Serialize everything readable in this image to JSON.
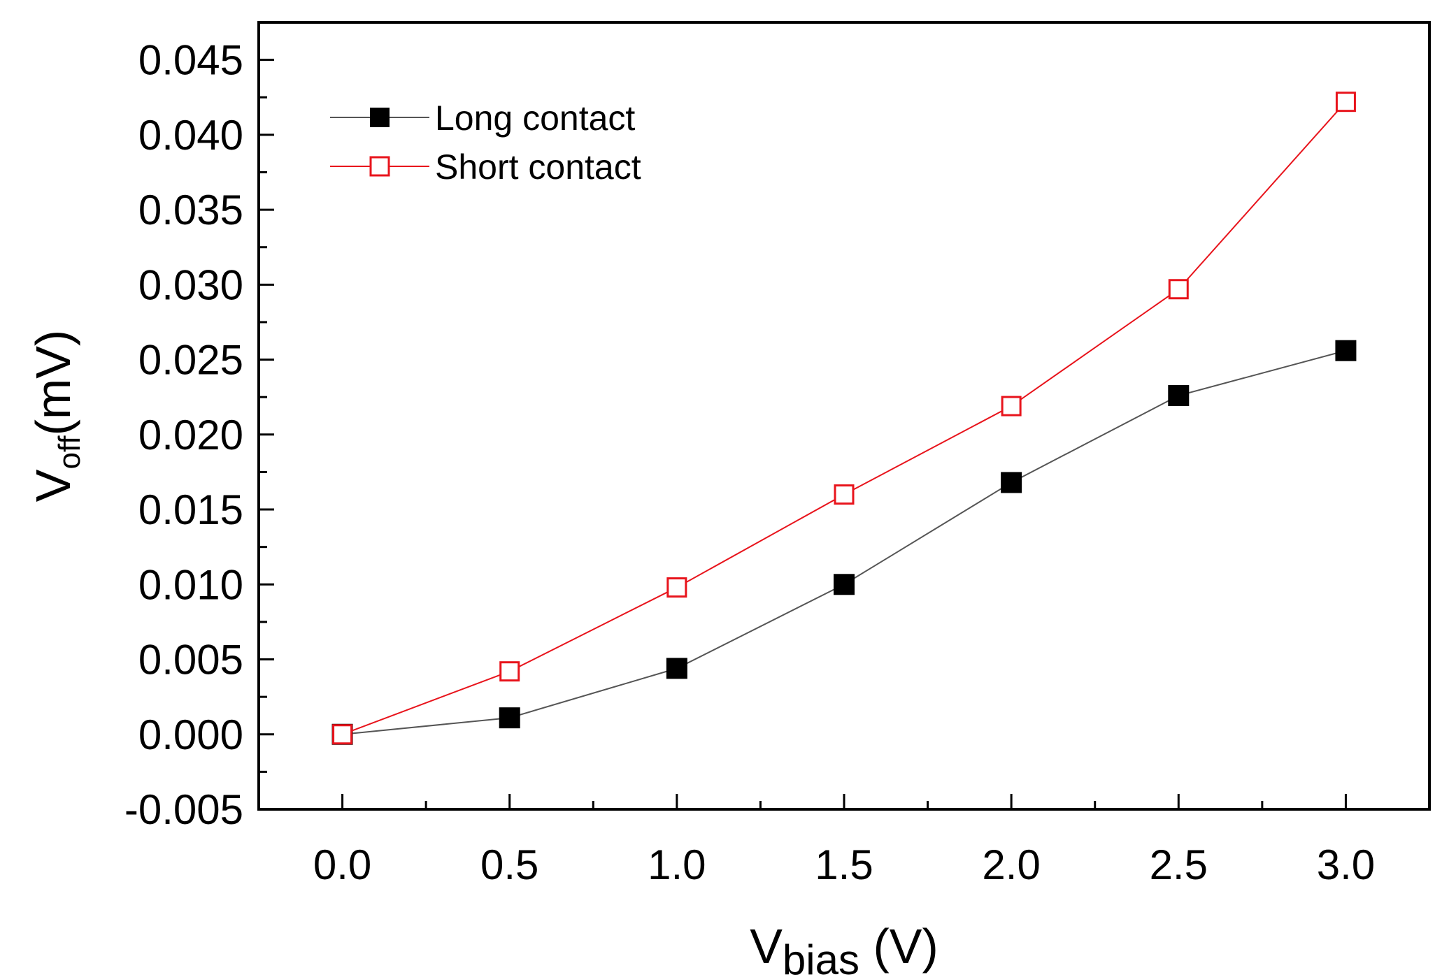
{
  "chart_data": {
    "type": "line",
    "title": "",
    "xlabel": {
      "main": "V",
      "sub": "bias",
      "unit": " (V)"
    },
    "ylabel": {
      "main": "V",
      "sub": "off",
      "unit": "(mV)"
    },
    "xlim": [
      -0.25,
      3.25
    ],
    "ylim": [
      -0.005,
      0.0475
    ],
    "x_ticks": [
      0.0,
      0.5,
      1.0,
      1.5,
      2.0,
      2.5,
      3.0
    ],
    "x_tick_labels": [
      "0.0",
      "0.5",
      "1.0",
      "1.5",
      "2.0",
      "2.5",
      "3.0"
    ],
    "y_ticks": [
      -0.005,
      0.0,
      0.005,
      0.01,
      0.015,
      0.02,
      0.025,
      0.03,
      0.035,
      0.04,
      0.045
    ],
    "y_tick_labels": [
      "-0.005",
      "0.000",
      "0.005",
      "0.010",
      "0.015",
      "0.020",
      "0.025",
      "0.030",
      "0.035",
      "0.040",
      "0.045"
    ],
    "x": [
      0.0,
      0.5,
      1.0,
      1.5,
      2.0,
      2.5,
      3.0
    ],
    "series": [
      {
        "name": "Long contact",
        "marker": "filled-square",
        "color": "#000000",
        "line_color": "#555555",
        "values": [
          0.0,
          0.0011,
          0.0044,
          0.01,
          0.0168,
          0.0226,
          0.0256
        ]
      },
      {
        "name": "Short contact",
        "marker": "open-square",
        "color": "#e8141c",
        "line_color": "#e8141c",
        "values": [
          0.0,
          0.0042,
          0.0098,
          0.016,
          0.0219,
          0.0297,
          0.0422
        ]
      }
    ],
    "legend_position": "top-left",
    "grid": false
  }
}
